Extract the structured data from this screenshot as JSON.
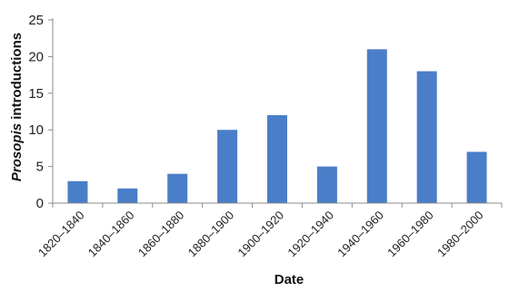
{
  "chart_data": {
    "type": "bar",
    "categories": [
      "1820–1840",
      "1840–1860",
      "1860–1880",
      "1880–1900",
      "1900–1920",
      "1920–1940",
      "1940–1960",
      "1960–1980",
      "1980–2000"
    ],
    "values": [
      3,
      2,
      4,
      10,
      12,
      5,
      21,
      18,
      7
    ],
    "xlabel": "Date",
    "ylabel_italic": "Prosopis",
    "ylabel_rest": " introductions",
    "ylim": [
      0,
      25
    ],
    "yticks": [
      0,
      5,
      10,
      15,
      20,
      25
    ],
    "grid": false,
    "legend": "none",
    "bar_color": "#4a7ec8",
    "axis_color": "#8c8c8c"
  }
}
